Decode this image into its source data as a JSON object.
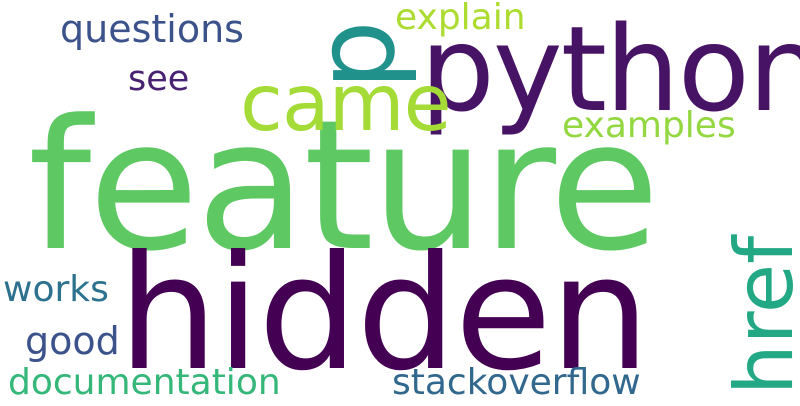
{
  "words": [
    {
      "text": "feature",
      "color": "#5ec962"
    },
    {
      "text": "hidden",
      "color": "#440154"
    },
    {
      "text": "python",
      "color": "#471365"
    },
    {
      "text": "p",
      "color": "#21918c"
    },
    {
      "text": "came",
      "color": "#a5db36"
    },
    {
      "text": "href",
      "color": "#22a884"
    },
    {
      "text": "questions",
      "color": "#3b528b"
    },
    {
      "text": "explain",
      "color": "#addc30"
    },
    {
      "text": "examples",
      "color": "#93d741"
    },
    {
      "text": "see",
      "color": "#482173"
    },
    {
      "text": "works",
      "color": "#2c728e"
    },
    {
      "text": "good",
      "color": "#3b528b"
    },
    {
      "text": "documentation",
      "color": "#35b779"
    },
    {
      "text": "stackoverflow",
      "color": "#31688e"
    }
  ]
}
